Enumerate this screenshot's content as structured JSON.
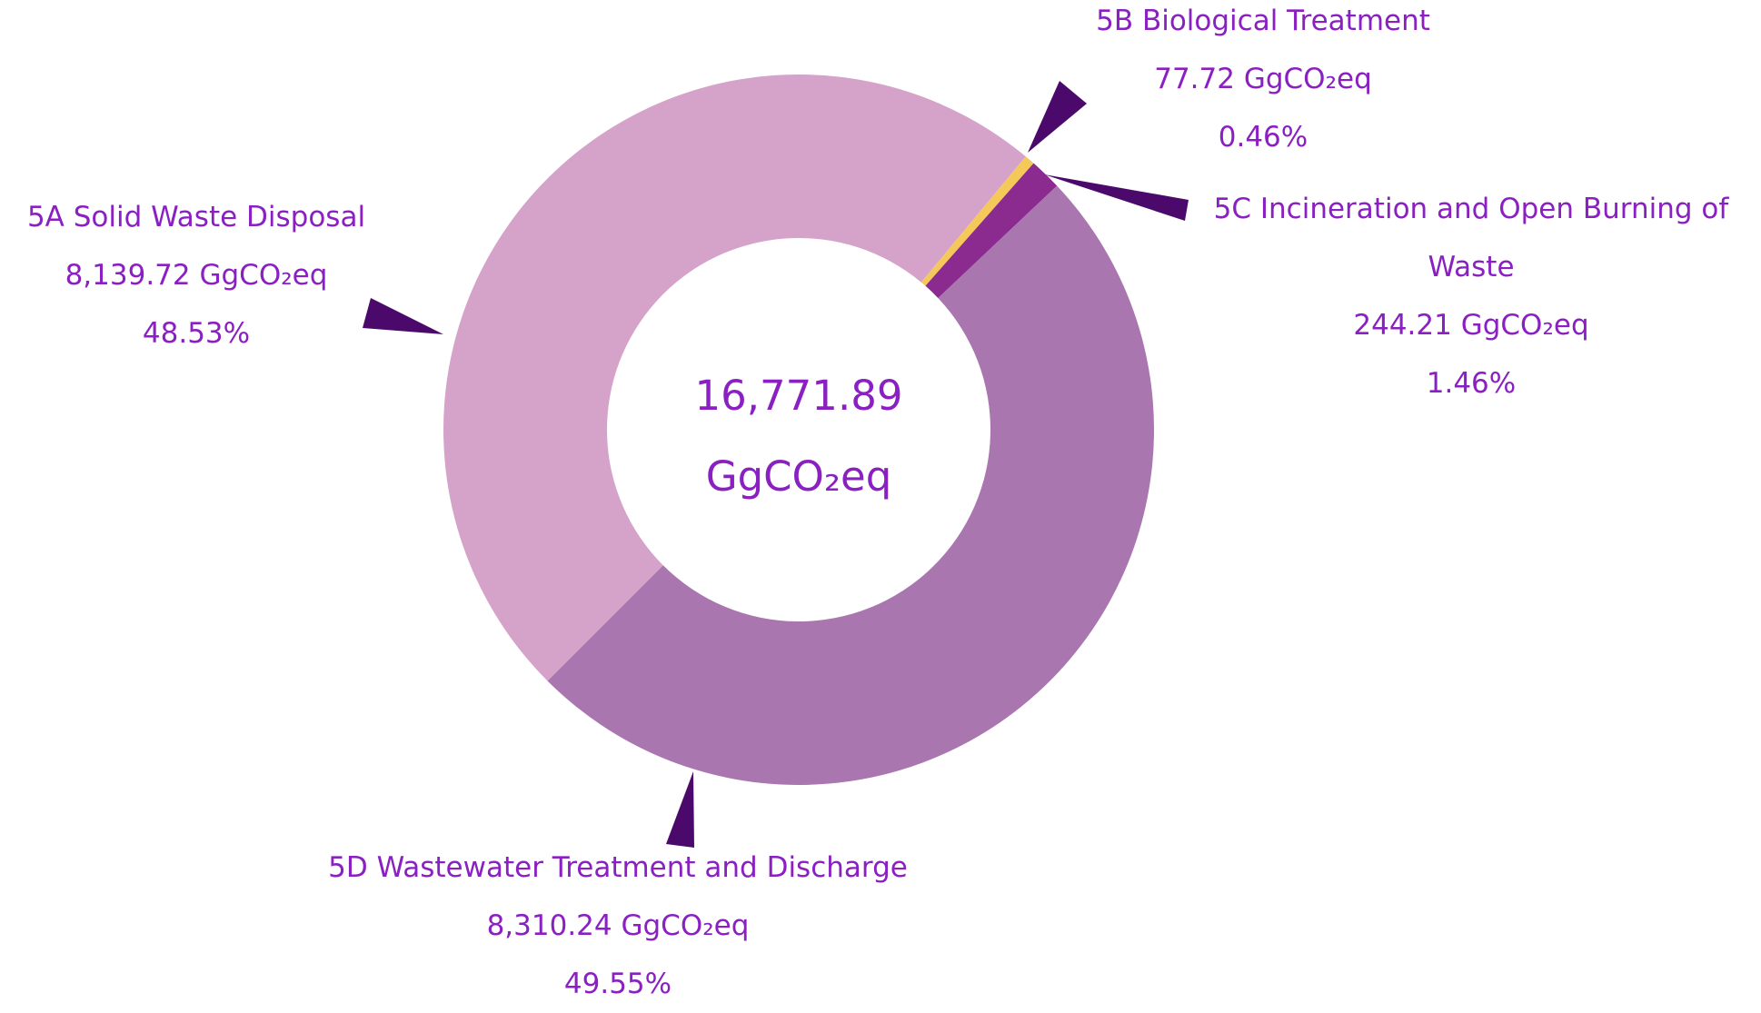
{
  "chart_data": {
    "type": "donut",
    "categories": [
      "5A Solid Waste Disposal",
      "5B Biological Treatment",
      "5C Incineration and Open Burning of Waste",
      "5D Wastewater Treatment and Discharge"
    ],
    "values": [
      8139.72,
      77.72,
      244.21,
      8310.24
    ],
    "value_labels": [
      "8,139.72 GgCO₂eq",
      "77.72 GgCO₂eq",
      "244.21 GgCO₂eq",
      "8,310.24 GgCO₂eq"
    ],
    "percent_labels": [
      "48.53%",
      "0.46%",
      "1.46%",
      "49.55%"
    ],
    "colors": [
      "#d5a3c9",
      "#f5c85a",
      "#8b2a8f",
      "#aa76b0"
    ],
    "center_value_label": "16,771.89",
    "center_unit": "GgCO₂eq"
  }
}
